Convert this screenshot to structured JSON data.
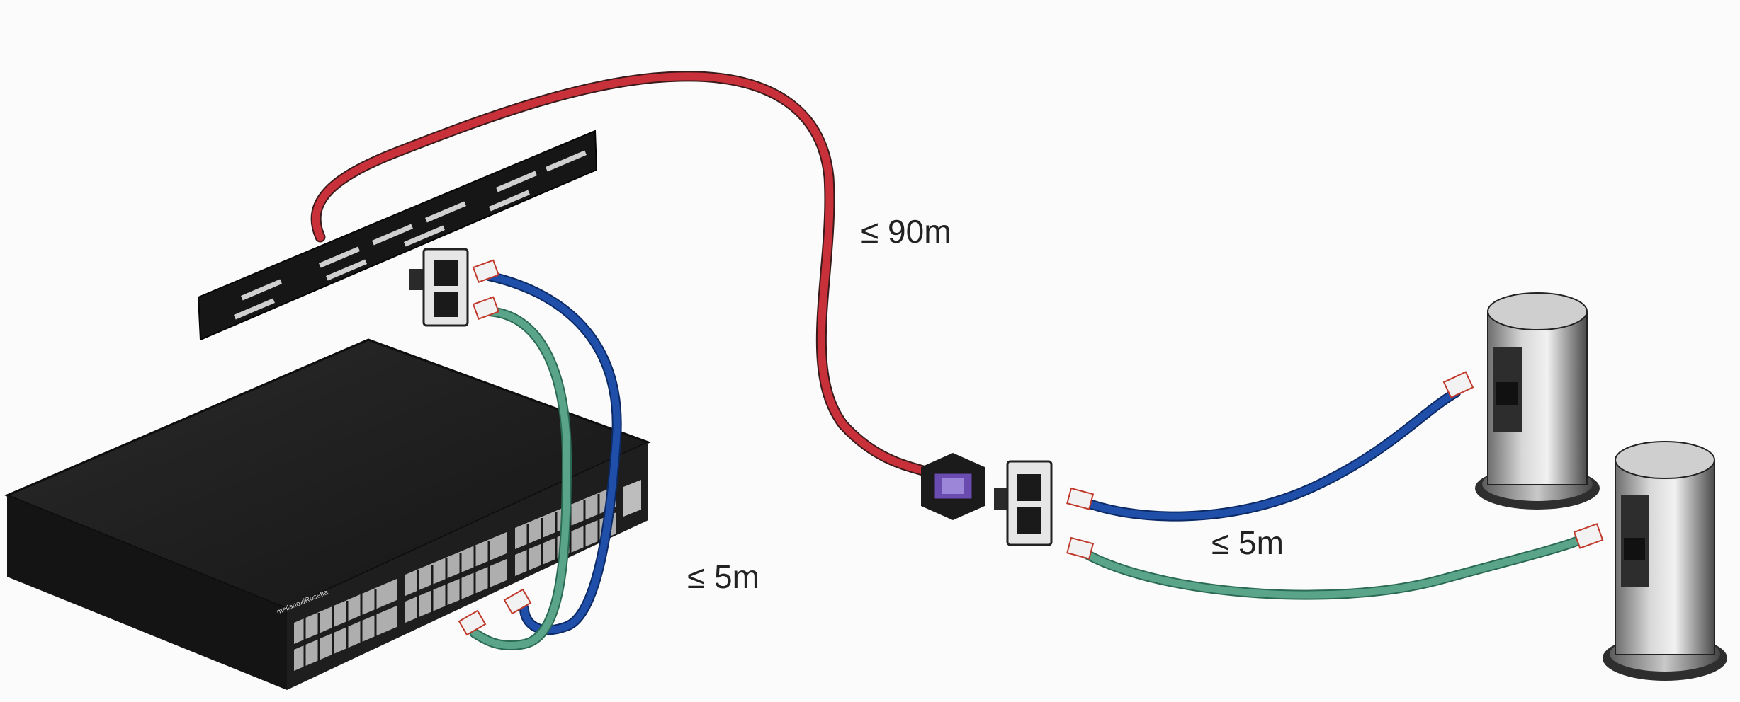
{
  "labels": {
    "permanent_link": "≤ 90m",
    "patch_left": "≤ 5m",
    "patch_right": "≤ 5m"
  },
  "switch": {
    "brand": "mellanox/Rosetta"
  },
  "colors": {
    "background": "#fbfbfb",
    "permanent_cable": "#c8303a",
    "patch_blue": "#1f4fa8",
    "patch_green": "#5aa58a",
    "switch_body": "#1c1c1c",
    "patch_panel": "#161616",
    "connector_purple": "#6a4bb0",
    "plug": "#f2f2f2"
  },
  "icons": {
    "switch": "network-switch-icon",
    "patch_panel": "patch-panel-icon",
    "wall_outlet": "wall-outlet-icon",
    "floor_box": "floor-outlet-tower-icon",
    "rj45": "rj45-plug-icon"
  }
}
